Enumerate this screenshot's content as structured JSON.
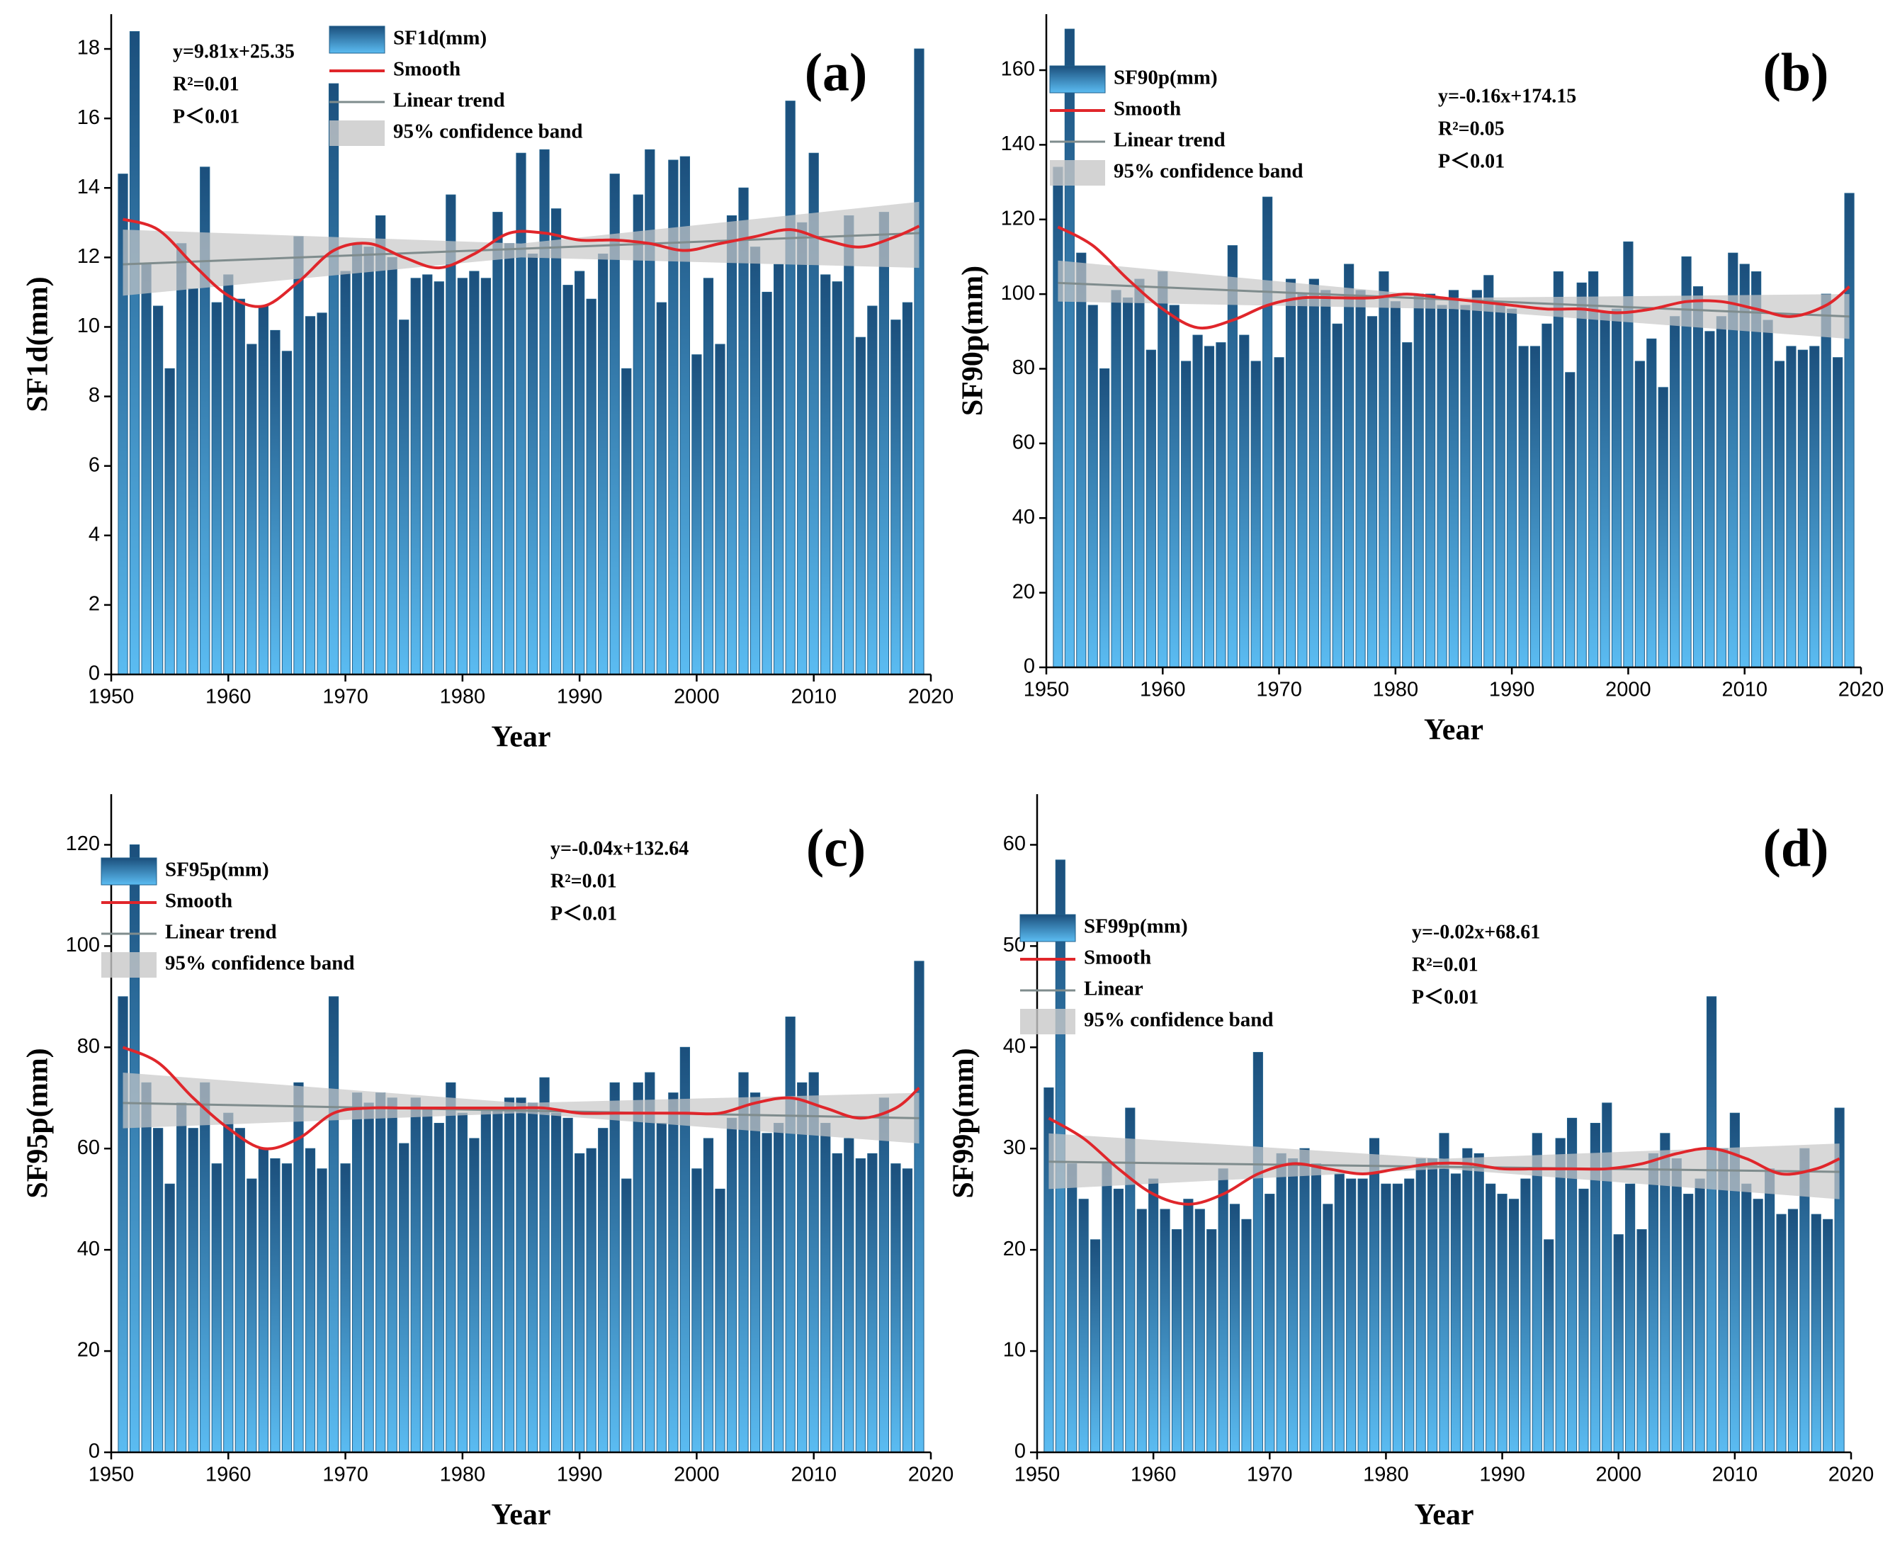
{
  "chart_data": [
    {
      "type": "bar",
      "panel_label": "(a)",
      "y_label": "SF1d(mm)",
      "x_label": "Year",
      "annotations": [
        "y=9.81x+25.35",
        "R²=0.01",
        "P＜0.01"
      ],
      "xlim": [
        1950,
        2020
      ],
      "xticks": [
        1950,
        1960,
        1970,
        1980,
        1990,
        2000,
        2010,
        2020
      ],
      "ylim": [
        0,
        19
      ],
      "yticks": [
        0,
        2,
        4,
        6,
        8,
        10,
        12,
        14,
        16,
        18
      ],
      "x": [
        1951,
        1952,
        1953,
        1954,
        1955,
        1956,
        1957,
        1958,
        1959,
        1960,
        1961,
        1962,
        1963,
        1964,
        1965,
        1966,
        1967,
        1968,
        1969,
        1970,
        1971,
        1972,
        1973,
        1974,
        1975,
        1976,
        1977,
        1978,
        1979,
        1980,
        1981,
        1982,
        1983,
        1984,
        1985,
        1986,
        1987,
        1988,
        1989,
        1990,
        1991,
        1992,
        1993,
        1994,
        1995,
        1996,
        1997,
        1998,
        1999,
        2000,
        2001,
        2002,
        2003,
        2004,
        2005,
        2006,
        2007,
        2008,
        2009,
        2010,
        2011,
        2012,
        2013,
        2014,
        2015,
        2016,
        2017,
        2018,
        2019
      ],
      "series": [
        {
          "name": "SF1d(mm)",
          "type": "bar",
          "color": "#1f5f8b",
          "values": [
            14.4,
            18.5,
            11.8,
            10.6,
            8.8,
            12.4,
            11.1,
            14.6,
            10.7,
            11.5,
            10.8,
            9.5,
            10.6,
            9.9,
            9.3,
            12.6,
            10.3,
            10.4,
            17.0,
            11.6,
            12.4,
            12.3,
            13.2,
            12.0,
            10.2,
            11.4,
            11.5,
            11.3,
            13.8,
            11.4,
            11.6,
            11.4,
            13.3,
            12.4,
            15.0,
            12.1,
            15.1,
            13.4,
            11.2,
            11.6,
            10.8,
            12.1,
            14.4,
            8.8,
            13.8,
            15.1,
            10.7,
            14.8,
            14.9,
            9.2,
            11.4,
            9.5,
            13.2,
            14.0,
            12.3,
            11.0,
            11.8,
            16.5,
            13.0,
            15.0,
            11.5,
            11.3,
            13.2,
            9.7,
            10.6,
            13.3,
            10.2,
            10.7,
            18.0
          ]
        },
        {
          "name": "Smooth",
          "type": "line",
          "color": "#e0262b",
          "x": [
            1951,
            1954,
            1957,
            1960,
            1963,
            1966,
            1969,
            1972,
            1975,
            1978,
            1981,
            1984,
            1987,
            1990,
            1993,
            1996,
            1999,
            2002,
            2005,
            2008,
            2011,
            2014,
            2017,
            2019
          ],
          "values": [
            13.1,
            12.8,
            11.8,
            10.9,
            10.6,
            11.3,
            12.2,
            12.4,
            12.0,
            11.7,
            12.1,
            12.7,
            12.7,
            12.5,
            12.5,
            12.4,
            12.2,
            12.4,
            12.6,
            12.8,
            12.5,
            12.3,
            12.6,
            12.9
          ]
        },
        {
          "name": "Linear trend",
          "type": "line",
          "color": "#7f8c8d",
          "x": [
            1951,
            2019
          ],
          "values": [
            11.8,
            12.7
          ]
        },
        {
          "name": "95% confidence band",
          "type": "band",
          "color": "#c8c8c8",
          "x": [
            1951,
            1985,
            2019
          ],
          "lower": [
            10.9,
            12.0,
            11.7
          ],
          "upper": [
            12.8,
            12.4,
            13.6
          ]
        }
      ]
    },
    {
      "type": "bar",
      "panel_label": "(b)",
      "y_label": "SF90p(mm)",
      "x_label": "Year",
      "annotations": [
        "y=-0.16x+174.15",
        "R²=0.05",
        "P＜0.01"
      ],
      "xlim": [
        1950,
        2020
      ],
      "xticks": [
        1950,
        1960,
        1970,
        1980,
        1990,
        2000,
        2010,
        2020
      ],
      "ylim": [
        0,
        175
      ],
      "yticks": [
        0,
        20,
        40,
        60,
        80,
        100,
        120,
        140,
        160
      ],
      "x": [
        1951,
        1952,
        1953,
        1954,
        1955,
        1956,
        1957,
        1958,
        1959,
        1960,
        1961,
        1962,
        1963,
        1964,
        1965,
        1966,
        1967,
        1968,
        1969,
        1970,
        1971,
        1972,
        1973,
        1974,
        1975,
        1976,
        1977,
        1978,
        1979,
        1980,
        1981,
        1982,
        1983,
        1984,
        1985,
        1986,
        1987,
        1988,
        1989,
        1990,
        1991,
        1992,
        1993,
        1994,
        1995,
        1996,
        1997,
        1998,
        1999,
        2000,
        2001,
        2002,
        2003,
        2004,
        2005,
        2006,
        2007,
        2008,
        2009,
        2010,
        2011,
        2012,
        2013,
        2014,
        2015,
        2016,
        2017,
        2018,
        2019
      ],
      "series": [
        {
          "name": "SF90p(mm)",
          "type": "bar",
          "color": "#1f5f8b",
          "values": [
            134,
            171,
            111,
            97,
            80,
            101,
            99,
            104,
            85,
            106,
            97,
            82,
            89,
            86,
            87,
            113,
            89,
            82,
            126,
            83,
            104,
            100,
            104,
            101,
            92,
            108,
            101,
            94,
            106,
            98,
            87,
            100,
            100,
            97,
            101,
            97,
            101,
            105,
            97,
            96,
            86,
            86,
            92,
            106,
            79,
            103,
            106,
            95,
            96,
            114,
            82,
            88,
            75,
            94,
            110,
            102,
            90,
            94,
            111,
            108,
            106,
            93,
            82,
            86,
            85,
            86,
            100,
            83,
            127
          ]
        },
        {
          "name": "Smooth",
          "type": "line",
          "color": "#e0262b",
          "x": [
            1951,
            1954,
            1957,
            1960,
            1963,
            1966,
            1969,
            1972,
            1975,
            1978,
            1981,
            1984,
            1987,
            1990,
            1993,
            1996,
            1999,
            2002,
            2005,
            2008,
            2011,
            2014,
            2017,
            2019
          ],
          "values": [
            118,
            113,
            104,
            96,
            91,
            93,
            97,
            99,
            99,
            99,
            100,
            99,
            98,
            97,
            96,
            96,
            95,
            96,
            98,
            98,
            96,
            94,
            97,
            102
          ]
        },
        {
          "name": "Linear trend",
          "type": "line",
          "color": "#7f8c8d",
          "x": [
            1951,
            2019
          ],
          "values": [
            103,
            94
          ]
        },
        {
          "name": "95% confidence band",
          "type": "band",
          "color": "#c8c8c8",
          "x": [
            1951,
            1985,
            2019
          ],
          "lower": [
            98,
            96,
            88
          ],
          "upper": [
            109,
            99,
            100
          ]
        }
      ]
    },
    {
      "type": "bar",
      "panel_label": "(c)",
      "y_label": "SF95p(mm)",
      "x_label": "Year",
      "annotations": [
        "y=-0.04x+132.64",
        "R²=0.01",
        "P＜0.01"
      ],
      "xlim": [
        1950,
        2020
      ],
      "xticks": [
        1950,
        1960,
        1970,
        1980,
        1990,
        2000,
        2010,
        2020
      ],
      "ylim": [
        0,
        130
      ],
      "yticks": [
        0,
        20,
        40,
        60,
        80,
        100,
        120
      ],
      "x": [
        1951,
        1952,
        1953,
        1954,
        1955,
        1956,
        1957,
        1958,
        1959,
        1960,
        1961,
        1962,
        1963,
        1964,
        1965,
        1966,
        1967,
        1968,
        1969,
        1970,
        1971,
        1972,
        1973,
        1974,
        1975,
        1976,
        1977,
        1978,
        1979,
        1980,
        1981,
        1982,
        1983,
        1984,
        1985,
        1986,
        1987,
        1988,
        1989,
        1990,
        1991,
        1992,
        1993,
        1994,
        1995,
        1996,
        1997,
        1998,
        1999,
        2000,
        2001,
        2002,
        2003,
        2004,
        2005,
        2006,
        2007,
        2008,
        2009,
        2010,
        2011,
        2012,
        2013,
        2014,
        2015,
        2016,
        2017,
        2018,
        2019
      ],
      "series": [
        {
          "name": "SF95p(mm)",
          "type": "bar",
          "color": "#1f5f8b",
          "values": [
            90,
            120,
            73,
            64,
            53,
            69,
            64,
            73,
            57,
            67,
            64,
            54,
            60,
            58,
            57,
            73,
            60,
            56,
            90,
            57,
            71,
            69,
            71,
            70,
            61,
            70,
            68,
            65,
            73,
            67,
            62,
            68,
            68,
            70,
            70,
            69,
            74,
            67,
            66,
            59,
            60,
            64,
            73,
            54,
            73,
            75,
            65,
            71,
            80,
            56,
            62,
            52,
            66,
            75,
            71,
            63,
            65,
            86,
            73,
            75,
            65,
            59,
            62,
            58,
            59,
            70,
            57,
            56,
            97
          ]
        },
        {
          "name": "Smooth",
          "type": "line",
          "color": "#e0262b",
          "x": [
            1951,
            1954,
            1957,
            1960,
            1963,
            1966,
            1969,
            1972,
            1975,
            1978,
            1981,
            1984,
            1987,
            1990,
            1993,
            1996,
            1999,
            2002,
            2005,
            2008,
            2011,
            2014,
            2017,
            2019
          ],
          "values": [
            80,
            77,
            70,
            64,
            60,
            62,
            67,
            68,
            68,
            68,
            68,
            68,
            68,
            67,
            67,
            67,
            67,
            67,
            69,
            70,
            68,
            66,
            68,
            72
          ]
        },
        {
          "name": "Linear trend",
          "type": "line",
          "color": "#7f8c8d",
          "x": [
            1951,
            2019
          ],
          "values": [
            69,
            66
          ]
        },
        {
          "name": "95% confidence band",
          "type": "band",
          "color": "#c8c8c8",
          "x": [
            1951,
            1985,
            2019
          ],
          "lower": [
            64,
            67,
            61
          ],
          "upper": [
            75,
            69,
            71
          ]
        }
      ]
    },
    {
      "type": "bar",
      "panel_label": "(d)",
      "y_label": "SF99p(mm)",
      "x_label": "Year",
      "annotations": [
        "y=-0.02x+68.61",
        "R²=0.01",
        "P＜0.01"
      ],
      "xlim": [
        1950,
        2020
      ],
      "xticks": [
        1950,
        1960,
        1970,
        1980,
        1990,
        2000,
        2010,
        2020
      ],
      "ylim": [
        0,
        65
      ],
      "yticks": [
        0,
        10,
        20,
        30,
        40,
        50,
        60
      ],
      "x": [
        1951,
        1952,
        1953,
        1954,
        1955,
        1956,
        1957,
        1958,
        1959,
        1960,
        1961,
        1962,
        1963,
        1964,
        1965,
        1966,
        1967,
        1968,
        1969,
        1970,
        1971,
        1972,
        1973,
        1974,
        1975,
        1976,
        1977,
        1978,
        1979,
        1980,
        1981,
        1982,
        1983,
        1984,
        1985,
        1986,
        1987,
        1988,
        1989,
        1990,
        1991,
        1992,
        1993,
        1994,
        1995,
        1996,
        1997,
        1998,
        1999,
        2000,
        2001,
        2002,
        2003,
        2004,
        2005,
        2006,
        2007,
        2008,
        2009,
        2010,
        2011,
        2012,
        2013,
        2014,
        2015,
        2016,
        2017,
        2018,
        2019
      ],
      "series": [
        {
          "name": "SF99p(mm)",
          "type": "bar",
          "color": "#1f5f8b",
          "values": [
            36,
            58.5,
            28.5,
            25,
            21,
            28.5,
            26,
            34,
            24,
            27,
            24,
            22,
            25,
            24,
            22,
            28,
            24.5,
            23,
            39.5,
            25.5,
            29.5,
            29,
            30,
            28.5,
            24.5,
            27.5,
            27,
            27,
            31,
            26.5,
            26.5,
            27,
            29,
            29,
            31.5,
            27.5,
            30,
            29.5,
            26.5,
            25.5,
            25,
            27,
            31.5,
            21,
            31,
            33,
            26,
            32.5,
            34.5,
            21.5,
            26.5,
            22,
            29.5,
            31.5,
            29,
            25.5,
            27,
            45,
            30,
            33.5,
            26.5,
            25,
            28,
            23.5,
            24,
            30,
            23.5,
            23,
            34
          ]
        },
        {
          "name": "Smooth",
          "type": "line",
          "color": "#e0262b",
          "x": [
            1951,
            1954,
            1957,
            1960,
            1963,
            1966,
            1969,
            1972,
            1975,
            1978,
            1981,
            1984,
            1987,
            1990,
            1993,
            1996,
            1999,
            2002,
            2005,
            2008,
            2011,
            2014,
            2017,
            2019
          ],
          "values": [
            33,
            31,
            28,
            25.5,
            24.5,
            25.5,
            27.5,
            28.5,
            28,
            27.5,
            28,
            28.5,
            28.5,
            28,
            28,
            28,
            28,
            28.5,
            29.5,
            30,
            29,
            27.5,
            28,
            29
          ]
        },
        {
          "name": "Linear",
          "type": "line",
          "color": "#7f8c8d",
          "x": [
            1951,
            2019
          ],
          "values": [
            28.7,
            27.7
          ]
        },
        {
          "name": "95% confidence band",
          "type": "band",
          "color": "#c8c8c8",
          "x": [
            1951,
            1985,
            2019
          ],
          "lower": [
            26,
            28,
            25
          ],
          "upper": [
            31.5,
            29,
            30.5
          ]
        }
      ]
    }
  ]
}
